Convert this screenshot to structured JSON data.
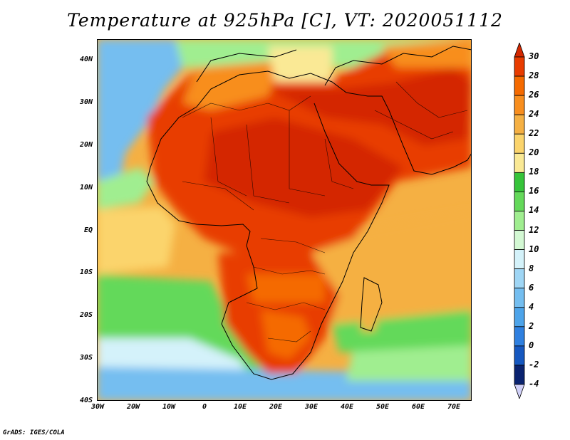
{
  "title": "Temperature at 925hPa [C], VT: 2020051112",
  "credit": "GrADS: IGES/COLA",
  "map": {
    "region": "Africa",
    "variable": "Temperature at 925hPa",
    "units": "C",
    "valid_time": "2020051112",
    "lon_range": [
      -30,
      75
    ],
    "lat_range": [
      -40,
      45
    ]
  },
  "lat_labels": [
    "40N",
    "30N",
    "20N",
    "10N",
    "EQ",
    "10S",
    "20S",
    "30S",
    "40S"
  ],
  "lon_labels": [
    "30W",
    "20W",
    "10W",
    "0",
    "10E",
    "20E",
    "30E",
    "40E",
    "50E",
    "60E",
    "70E"
  ],
  "colorbar": {
    "levels": [
      "30",
      "28",
      "26",
      "24",
      "22",
      "20",
      "18",
      "16",
      "14",
      "12",
      "10",
      "8",
      "6",
      "4",
      "2",
      "0",
      "-2",
      "-4"
    ],
    "colors": [
      "#d42800",
      "#e83c00",
      "#f56a00",
      "#f88e1e",
      "#f5b043",
      "#fbd46c",
      "#fae995",
      "#36c43a",
      "#64d95a",
      "#a0ee90",
      "#d3f8d3",
      "#d4f2fa",
      "#9fd6f5",
      "#74bef0",
      "#4da4ea",
      "#2f80e0",
      "#1658c0",
      "#0a2370",
      "#d0d0f8"
    ]
  }
}
